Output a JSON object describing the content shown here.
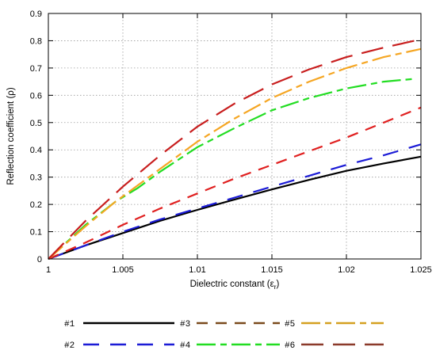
{
  "chart_data": {
    "type": "line",
    "xlabel": "Dielectric constant (ε",
    "xlabel_sub": "r",
    "xlabel_close": ")",
    "ylabel": "Reflection coefficient (ρ)",
    "xlim": [
      1,
      1.025
    ],
    "ylim": [
      0,
      0.9
    ],
    "x_ticks": [
      1,
      1.005,
      1.01,
      1.015,
      1.02,
      1.025
    ],
    "x_tick_labels": [
      "1",
      "1.005",
      "1.01",
      "1.015",
      "1.02",
      "1.025"
    ],
    "y_ticks": [
      0,
      0.1,
      0.2,
      0.3,
      0.4,
      0.5,
      0.6,
      0.7,
      0.8,
      0.9
    ],
    "y_tick_labels": [
      "0",
      "0.1",
      "0.2",
      "0.3",
      "0.4",
      "0.5",
      "0.6",
      "0.7",
      "0.8",
      "0.9"
    ],
    "grid": true,
    "legend_placement": "bottom",
    "series": [
      {
        "name": "#1",
        "color": "#000000",
        "dash": "solid",
        "points": [
          [
            1.0,
            0
          ],
          [
            1.0025,
            0.05
          ],
          [
            1.005,
            0.095
          ],
          [
            1.0075,
            0.14
          ],
          [
            1.01,
            0.18
          ],
          [
            1.0125,
            0.218
          ],
          [
            1.015,
            0.255
          ],
          [
            1.0175,
            0.29
          ],
          [
            1.02,
            0.323
          ],
          [
            1.0225,
            0.35
          ],
          [
            1.025,
            0.375
          ]
        ]
      },
      {
        "name": "#2",
        "color": "#1b1bd6",
        "dash": "long",
        "points": [
          [
            1.0,
            0
          ],
          [
            1.0025,
            0.05
          ],
          [
            1.005,
            0.1
          ],
          [
            1.0075,
            0.145
          ],
          [
            1.01,
            0.185
          ],
          [
            1.0125,
            0.225
          ],
          [
            1.015,
            0.265
          ],
          [
            1.0175,
            0.305
          ],
          [
            1.02,
            0.345
          ],
          [
            1.0225,
            0.38
          ],
          [
            1.025,
            0.42
          ]
        ]
      },
      {
        "name": "#3",
        "color": "#e02020",
        "dash": "medium",
        "points": [
          [
            1.0,
            0
          ],
          [
            1.0025,
            0.06
          ],
          [
            1.005,
            0.125
          ],
          [
            1.0075,
            0.185
          ],
          [
            1.01,
            0.24
          ],
          [
            1.0125,
            0.295
          ],
          [
            1.015,
            0.345
          ],
          [
            1.0175,
            0.395
          ],
          [
            1.02,
            0.445
          ],
          [
            1.0225,
            0.5
          ],
          [
            1.025,
            0.555
          ]
        ]
      },
      {
        "name": "#4",
        "color": "#22dd22",
        "dash": "longshort",
        "points": [
          [
            1.0,
            0
          ],
          [
            1.0025,
            0.125
          ],
          [
            1.0045,
            0.21
          ],
          [
            1.006,
            0.26
          ],
          [
            1.0075,
            0.32
          ],
          [
            1.01,
            0.41
          ],
          [
            1.0125,
            0.48
          ],
          [
            1.015,
            0.545
          ],
          [
            1.0175,
            0.59
          ],
          [
            1.02,
            0.625
          ],
          [
            1.0225,
            0.65
          ],
          [
            1.0245,
            0.66
          ]
        ]
      },
      {
        "name": "#5",
        "color": "#f5a623",
        "dash": "longshort",
        "points": [
          [
            1.0,
            0
          ],
          [
            1.0025,
            0.12
          ],
          [
            1.0045,
            0.21
          ],
          [
            1.006,
            0.27
          ],
          [
            1.0075,
            0.33
          ],
          [
            1.01,
            0.43
          ],
          [
            1.0125,
            0.515
          ],
          [
            1.015,
            0.59
          ],
          [
            1.0175,
            0.65
          ],
          [
            1.02,
            0.7
          ],
          [
            1.0225,
            0.74
          ],
          [
            1.025,
            0.77
          ]
        ]
      },
      {
        "name": "#6",
        "color": "#c81e1e",
        "dash": "xlong",
        "points": [
          [
            1.0,
            0
          ],
          [
            1.0025,
            0.14
          ],
          [
            1.005,
            0.265
          ],
          [
            1.0075,
            0.38
          ],
          [
            1.01,
            0.485
          ],
          [
            1.0125,
            0.57
          ],
          [
            1.015,
            0.64
          ],
          [
            1.0175,
            0.695
          ],
          [
            1.02,
            0.74
          ],
          [
            1.0225,
            0.775
          ],
          [
            1.025,
            0.805
          ]
        ]
      }
    ],
    "legend_samples": [
      {
        "label": "#1",
        "color": "#000000",
        "dash": "solid"
      },
      {
        "label": "#3",
        "color": "#7a4a1c",
        "dash": "medium"
      },
      {
        "label": "#5",
        "color": "#d4a020",
        "dash": "longshort"
      },
      {
        "label": "#2",
        "color": "#1b1bd6",
        "dash": "long"
      },
      {
        "label": "#4",
        "color": "#22dd22",
        "dash": "longshort"
      },
      {
        "label": "#6",
        "color": "#8b3a2a",
        "dash": "xlong"
      }
    ]
  }
}
